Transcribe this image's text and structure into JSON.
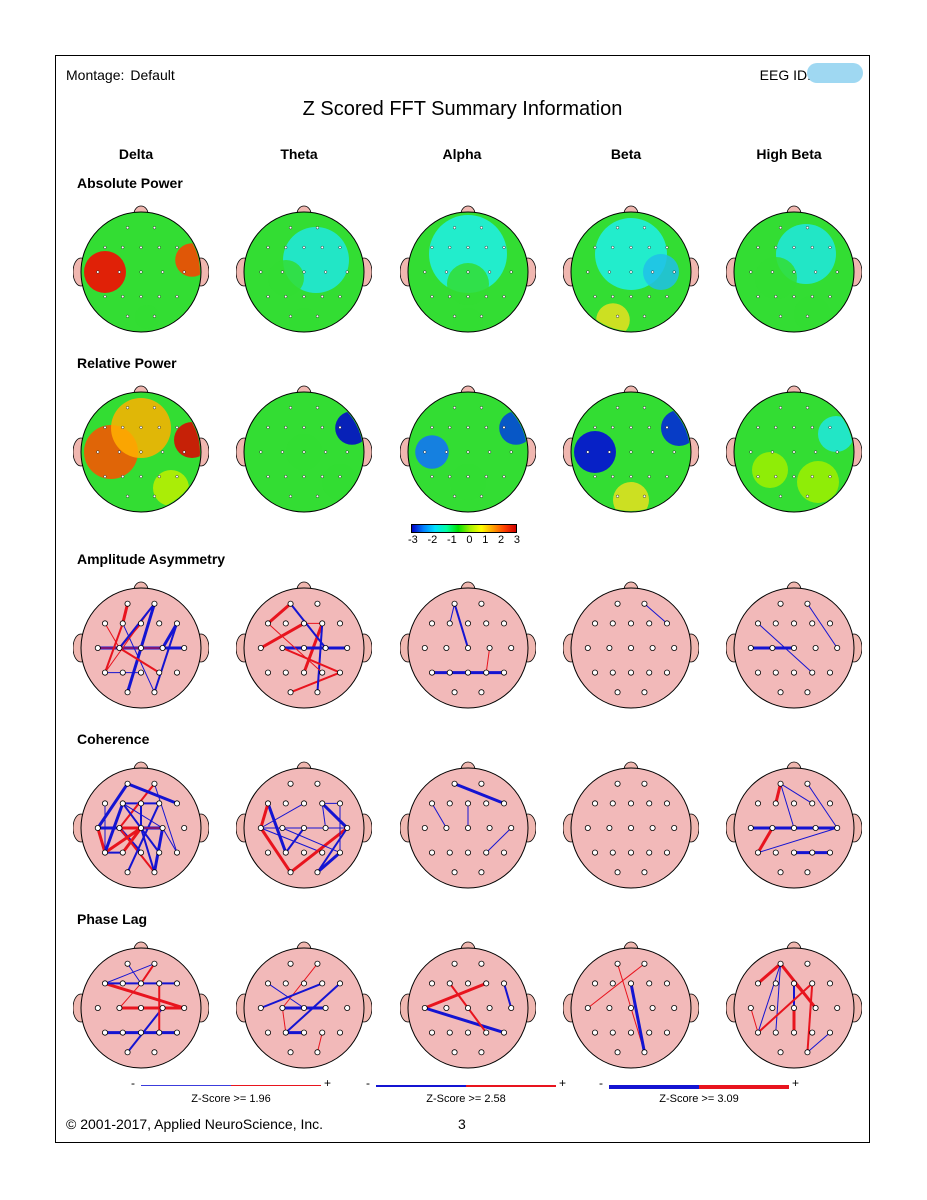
{
  "header": {
    "montage_label": "Montage:",
    "montage_value": "Default",
    "eeg_id_label": "EEG ID:",
    "title": "Z Scored FFT Summary Information"
  },
  "columns": [
    "Delta",
    "Theta",
    "Alpha",
    "Beta",
    "High Beta"
  ],
  "rows": [
    {
      "label": "Absolute Power",
      "kind": "map"
    },
    {
      "label": "Relative Power",
      "kind": "map"
    },
    {
      "label": "Amplitude Asymmetry",
      "kind": "network"
    },
    {
      "label": "Coherence",
      "kind": "network"
    },
    {
      "label": "Phase Lag",
      "kind": "network"
    }
  ],
  "colors": {
    "head_map": "#33dd33",
    "head_network": "#f2b9b9",
    "ear": "#f0b7b0",
    "positive_line": "#e8141e",
    "negative_line": "#1414d2",
    "electrode": "#ffffff"
  },
  "color_scale": {
    "min": -3,
    "max": 3,
    "labels": [
      "-3",
      "-2",
      "-1",
      "0",
      "1",
      "2",
      "3"
    ]
  },
  "z_legends": [
    {
      "caption": "Z-Score >= 1.96",
      "minus": "-",
      "plus": "+",
      "weight": 1
    },
    {
      "caption": "Z-Score >= 2.58",
      "minus": "-",
      "plus": "+",
      "weight": 2
    },
    {
      "caption": "Z-Score >= 3.09",
      "minus": "-",
      "plus": "+",
      "weight": 3.5
    }
  ],
  "footer": {
    "copyright": "© 2001-2017, Applied NeuroScience, Inc.",
    "page_number": "3"
  }
}
